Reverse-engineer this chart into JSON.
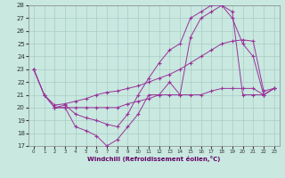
{
  "xlabel": "Windchill (Refroidissement éolien,°C)",
  "xlim": [
    -0.5,
    23.5
  ],
  "ylim": [
    17,
    28
  ],
  "xticks": [
    0,
    1,
    2,
    3,
    4,
    5,
    6,
    7,
    8,
    9,
    10,
    11,
    12,
    13,
    14,
    15,
    16,
    17,
    18,
    19,
    20,
    21,
    22,
    23
  ],
  "yticks": [
    17,
    18,
    19,
    20,
    21,
    22,
    23,
    24,
    25,
    26,
    27,
    28
  ],
  "background_color": "#c8e8e0",
  "grid_color": "#aaccc4",
  "line_color": "#993399",
  "series": [
    {
      "x": [
        0,
        1,
        2,
        3,
        4,
        5,
        6,
        7,
        8,
        9,
        10,
        11,
        12,
        13,
        14,
        15,
        16,
        17,
        18,
        19,
        20,
        21,
        22,
        23
      ],
      "y": [
        23,
        21,
        20,
        20,
        18.5,
        18.2,
        17.8,
        17,
        17.5,
        18.5,
        19.5,
        21,
        21,
        22,
        21,
        25.5,
        27,
        27.5,
        28,
        27,
        25,
        24,
        21,
        21.5
      ]
    },
    {
      "x": [
        0,
        1,
        2,
        3,
        4,
        5,
        6,
        7,
        8,
        9,
        10,
        11,
        12,
        13,
        14,
        15,
        16,
        17,
        18,
        19,
        20,
        21,
        22,
        23
      ],
      "y": [
        23,
        21,
        20.2,
        20.3,
        20.5,
        20.7,
        21,
        21.2,
        21.3,
        21.5,
        21.7,
        22,
        22.3,
        22.6,
        23,
        23.5,
        24,
        24.5,
        25,
        25.2,
        25.3,
        25.2,
        21.3,
        21.5
      ]
    },
    {
      "x": [
        2,
        3,
        4,
        5,
        6,
        7,
        8,
        9,
        10,
        11,
        12,
        13,
        14,
        15,
        16,
        17,
        18,
        19,
        20,
        21,
        22,
        23
      ],
      "y": [
        20,
        20.2,
        19.5,
        19.2,
        19,
        18.7,
        18.5,
        19.5,
        21,
        22.3,
        23.5,
        24.5,
        25,
        27,
        27.5,
        28,
        28,
        27.5,
        21,
        21,
        21,
        21.5
      ]
    },
    {
      "x": [
        0,
        1,
        2,
        3,
        4,
        5,
        6,
        7,
        8,
        9,
        10,
        11,
        12,
        13,
        14,
        15,
        16,
        17,
        18,
        19,
        20,
        21,
        22,
        23
      ],
      "y": [
        23,
        21,
        20,
        20,
        20,
        20,
        20,
        20,
        20,
        20.3,
        20.5,
        20.7,
        21,
        21,
        21,
        21,
        21,
        21.3,
        21.5,
        21.5,
        21.5,
        21.5,
        21,
        21.5
      ]
    }
  ]
}
